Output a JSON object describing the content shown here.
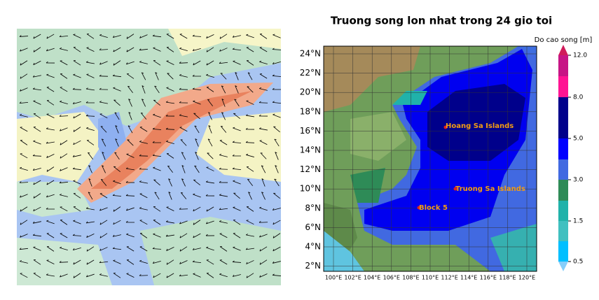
{
  "title": "Truong song lon nhat trong 24 gio toi",
  "colorbar": {
    "label": "Do cao song [m]",
    "ticks": [
      "12.0",
      "8.0",
      "5.0",
      "3.0",
      "1.5",
      "0.5"
    ]
  },
  "lat_ticks": [
    "24°N",
    "22°N",
    "20°N",
    "18°N",
    "16°N",
    "14°N",
    "12°N",
    "10°N",
    "8°N",
    "6°N",
    "4°N",
    "2°N"
  ],
  "lon_ticks": [
    "100°E",
    "102°E",
    "104°E",
    "106°E",
    "108°E",
    "110°E",
    "112°E",
    "114°E",
    "116°E",
    "118°E",
    "120°E"
  ],
  "places": [
    "Hoang Sa Islands",
    "Truong Sa Islands",
    "Block 5"
  ]
}
